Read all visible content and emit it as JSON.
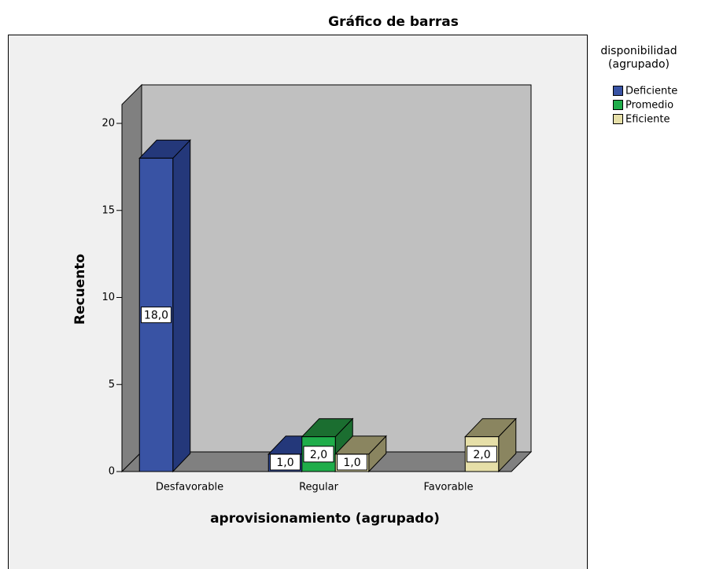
{
  "chart_data": {
    "type": "bar3d",
    "title": "Gráfico de barras",
    "x_label": "aprovisionamiento (agrupado)",
    "y_label": "Recuento",
    "legend_title": [
      "disponibilidad",
      "(agrupado)"
    ],
    "categories": [
      "Desfavorable",
      "Regular",
      "Favorable"
    ],
    "series": [
      {
        "name": "Deficiente",
        "color": "#3953a4",
        "side_color": "#24387a",
        "values": [
          18,
          1,
          null
        ],
        "value_labels": [
          "18,0",
          "1,0",
          null
        ]
      },
      {
        "name": "Promedio",
        "color": "#1fad4a",
        "side_color": "#1b6e30",
        "values": [
          null,
          2,
          null
        ],
        "value_labels": [
          null,
          "2,0",
          null
        ]
      },
      {
        "name": "Eficiente",
        "color": "#e6dfa8",
        "side_color": "#8a8560",
        "values": [
          null,
          1,
          2
        ],
        "value_labels": [
          null,
          "1,0",
          "2,0"
        ]
      }
    ],
    "ylim": [
      0,
      21
    ],
    "yticks": [
      0,
      5,
      10,
      15,
      20
    ],
    "legend_position": "right"
  }
}
